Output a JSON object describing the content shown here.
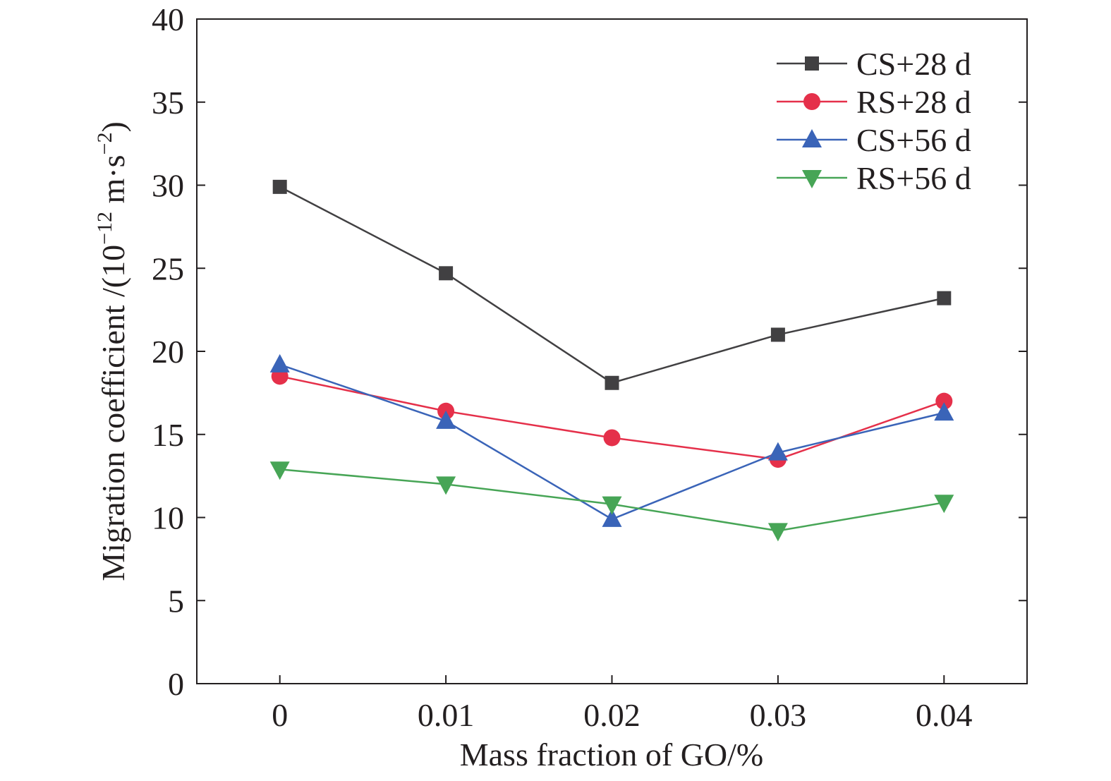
{
  "chart_data": {
    "type": "line",
    "x": [
      0,
      0.01,
      0.02,
      0.03,
      0.04
    ],
    "x_tick_labels": [
      "0",
      "0.01",
      "0.02",
      "0.03",
      "0.04"
    ],
    "xlim": [
      -0.005,
      0.045
    ],
    "ylim": [
      0,
      40
    ],
    "y_ticks": [
      0,
      5,
      10,
      15,
      20,
      25,
      30,
      35,
      40
    ],
    "xlabel": "Mass fraction of GO/%",
    "ylabel": {
      "prefix": "Migration coefficient /(10",
      "exp1": "−12",
      "middle": " m·s",
      "exp2": "−2",
      "suffix": ")"
    },
    "grid": false,
    "legend_position": "top-right",
    "series": [
      {
        "name": "CS+28 d",
        "color": "#414042",
        "marker": "square",
        "values": [
          29.9,
          24.7,
          18.1,
          21.0,
          23.2
        ]
      },
      {
        "name": "RS+28 d",
        "color": "#e5304a",
        "marker": "circle",
        "values": [
          18.5,
          16.4,
          14.8,
          13.5,
          17.0
        ]
      },
      {
        "name": "CS+56 d",
        "color": "#3a64b8",
        "marker": "triangle-up",
        "values": [
          19.2,
          15.8,
          9.9,
          13.9,
          16.3
        ]
      },
      {
        "name": "RS+56 d",
        "color": "#47a556",
        "marker": "triangle-down",
        "values": [
          12.9,
          12.0,
          10.8,
          9.2,
          10.9
        ]
      }
    ]
  }
}
